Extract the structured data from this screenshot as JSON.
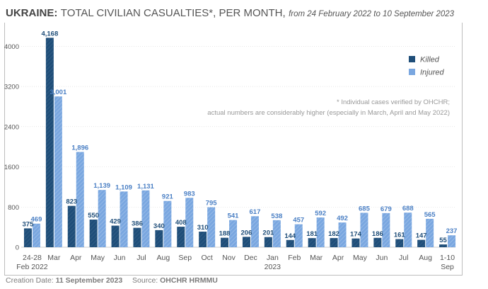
{
  "title": {
    "bold": "UKRAINE:",
    "main": "TOTAL CIVILIAN CASUALTIES*, PER MONTH,",
    "sub": "from 24 February 2022 to 10 September 2023"
  },
  "note": {
    "line1": "* Individual cases verified by OHCHR;",
    "line2": "actual numbers are considerably higher (especially in March, April and May 2022)"
  },
  "footer": {
    "creation_label": "Creation Date:",
    "creation_date": "11 September 2023",
    "source_label": "Source:",
    "source": "OHCHR HRMMU"
  },
  "colors": {
    "killed": "#1f4e79",
    "injured": "#7aa7e0",
    "killed_label": "#1f4e79",
    "injured_label": "#4a7fc4",
    "axis_text": "#555555",
    "grid": "#d6d6d6"
  },
  "chart_data": {
    "type": "bar",
    "categories": [
      [
        "24-28",
        "Feb 2022"
      ],
      [
        "Mar"
      ],
      [
        "Apr"
      ],
      [
        "May"
      ],
      [
        "Jun"
      ],
      [
        "Jul"
      ],
      [
        "Aug"
      ],
      [
        "Sep"
      ],
      [
        "Oct"
      ],
      [
        "Nov"
      ],
      [
        "Dec"
      ],
      [
        "Jan",
        "2023"
      ],
      [
        "Feb"
      ],
      [
        "Mar"
      ],
      [
        "Apr"
      ],
      [
        "May"
      ],
      [
        "Jun"
      ],
      [
        "Jul"
      ],
      [
        "Aug"
      ],
      [
        "1-10",
        "Sep"
      ]
    ],
    "series": [
      {
        "name": "Killed",
        "values": [
          375,
          4168,
          823,
          550,
          429,
          386,
          340,
          408,
          310,
          188,
          206,
          201,
          144,
          181,
          182,
          174,
          186,
          161,
          147,
          55
        ]
      },
      {
        "name": "Injured",
        "values": [
          469,
          3001,
          1896,
          1139,
          1109,
          1131,
          921,
          983,
          795,
          541,
          617,
          538,
          457,
          592,
          492,
          685,
          679,
          688,
          565,
          237
        ]
      }
    ],
    "yticks": [
      "0",
      "800",
      "1600",
      "2400",
      "3200",
      "4000"
    ],
    "ylim": [
      0,
      4300
    ],
    "grid": true,
    "legend": "top-right"
  }
}
